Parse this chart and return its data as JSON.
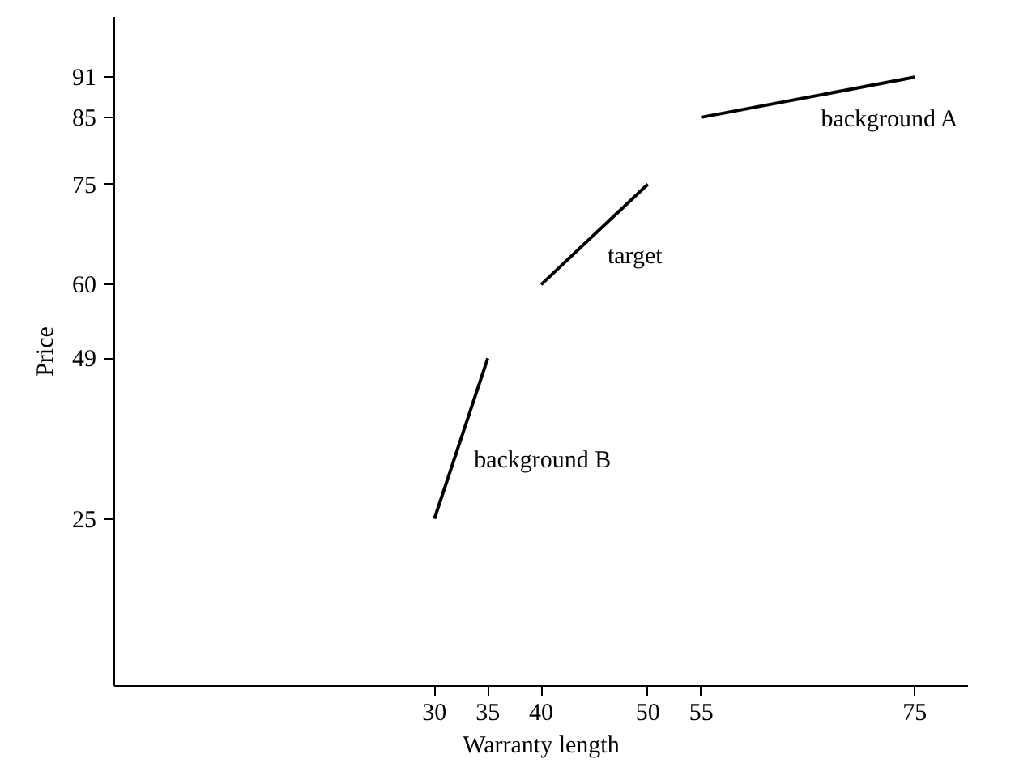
{
  "chart_data": {
    "type": "line",
    "xlabel": "Warranty length",
    "ylabel": "Price",
    "xlim": [
      0,
      80
    ],
    "ylim": [
      0,
      100
    ],
    "xticks": [
      30,
      35,
      40,
      50,
      55,
      75
    ],
    "yticks": [
      25,
      49,
      60,
      75,
      85,
      91
    ],
    "grid": false,
    "marker": "none",
    "line_style": "solid",
    "series": [
      {
        "name": "background A",
        "color": "#000000",
        "x": [
          55,
          75
        ],
        "values": [
          85,
          91
        ]
      },
      {
        "name": "target",
        "color": "#000000",
        "x": [
          40,
          50
        ],
        "values": [
          60,
          75
        ]
      },
      {
        "name": "background B",
        "color": "#000000",
        "x": [
          30,
          35
        ],
        "values": [
          25,
          49
        ]
      }
    ]
  }
}
